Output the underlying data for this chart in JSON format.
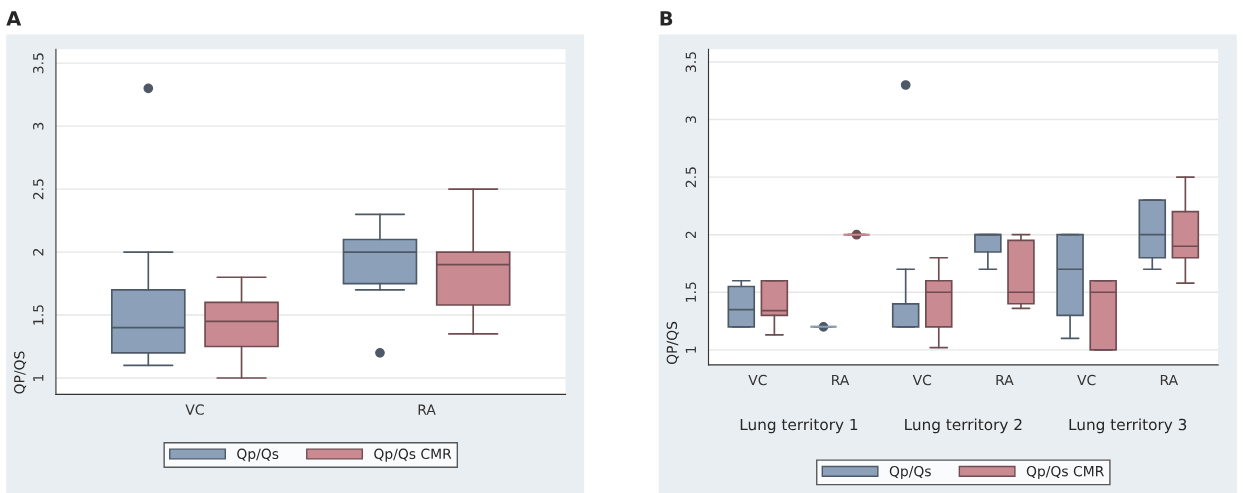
{
  "chart_data": [
    {
      "type": "box",
      "title": "A",
      "ylabel": "QP/QS",
      "categories": [
        "VC",
        "RA"
      ],
      "ylim": [
        0.87,
        3.61
      ],
      "yticks": [
        1,
        1.5,
        2,
        2.5,
        3,
        3.5
      ],
      "grid": "y",
      "legend": "bottom",
      "series": [
        {
          "name": "Qp/Qs",
          "color": "#8ca1b9",
          "boxes": [
            {
              "low": 1.1,
              "q1": 1.2,
              "median": 1.4,
              "q3": 1.7,
              "high": 2.0,
              "outliers": [
                3.3
              ]
            },
            {
              "low": 1.7,
              "q1": 1.75,
              "median": 2.0,
              "q3": 2.1,
              "high": 2.3,
              "outliers": [
                1.2
              ]
            }
          ]
        },
        {
          "name": "Qp/Qs CMR",
          "color": "#c98a92",
          "boxes": [
            {
              "low": 1.0,
              "q1": 1.25,
              "median": 1.45,
              "q3": 1.6,
              "high": 1.8
            },
            {
              "low": 1.35,
              "q1": 1.58,
              "median": 1.9,
              "q3": 2.0,
              "high": 2.5
            }
          ]
        }
      ]
    },
    {
      "type": "box",
      "title": "B",
      "ylabel": "QP/QS",
      "categories": [
        "VC",
        "RA",
        "VC",
        "RA",
        "VC",
        "RA"
      ],
      "ylim": [
        0.87,
        3.61
      ],
      "yticks": [
        1,
        1.5,
        2,
        2.5,
        3,
        3.5
      ],
      "grid": "y",
      "legend": "bottom",
      "annotations": [
        "Lung territory 1",
        "Lung territory 2",
        "Lung territory 3"
      ],
      "series": [
        {
          "name": "Qp/Qs",
          "color": "#8ca1b9",
          "boxes": [
            {
              "low": 1.2,
              "q1": 1.2,
              "median": 1.35,
              "q3": 1.55,
              "high": 1.6
            },
            {
              "low": 1.2,
              "q1": 1.2,
              "median": 1.2,
              "q3": 1.2,
              "high": 1.2,
              "outliers": [
                1.2
              ]
            },
            {
              "low": 1.2,
              "q1": 1.2,
              "median": 1.4,
              "q3": 1.4,
              "high": 1.7,
              "outliers": [
                3.3
              ]
            },
            {
              "low": 1.7,
              "q1": 1.85,
              "median": 2.0,
              "q3": 2.0,
              "high": 2.0
            },
            {
              "low": 1.1,
              "q1": 1.3,
              "median": 1.7,
              "q3": 2.0,
              "high": 2.0
            },
            {
              "low": 1.7,
              "q1": 1.8,
              "median": 2.0,
              "q3": 2.3,
              "high": 2.3
            }
          ]
        },
        {
          "name": "Qp/Qs CMR",
          "color": "#c98a92",
          "boxes": [
            {
              "low": 1.13,
              "q1": 1.3,
              "median": 1.34,
              "q3": 1.6,
              "high": 1.6
            },
            {
              "low": 2.0,
              "q1": 2.0,
              "median": 2.0,
              "q3": 2.0,
              "high": 2.0,
              "outliers": [
                2.0
              ]
            },
            {
              "low": 1.02,
              "q1": 1.2,
              "median": 1.5,
              "q3": 1.6,
              "high": 1.8
            },
            {
              "low": 1.36,
              "q1": 1.4,
              "median": 1.5,
              "q3": 1.95,
              "high": 2.0
            },
            {
              "low": 1.0,
              "q1": 1.0,
              "median": 1.5,
              "q3": 1.6,
              "high": 1.6
            },
            {
              "low": 1.58,
              "q1": 1.8,
              "median": 1.9,
              "q3": 2.2,
              "high": 2.5
            }
          ]
        }
      ]
    }
  ]
}
